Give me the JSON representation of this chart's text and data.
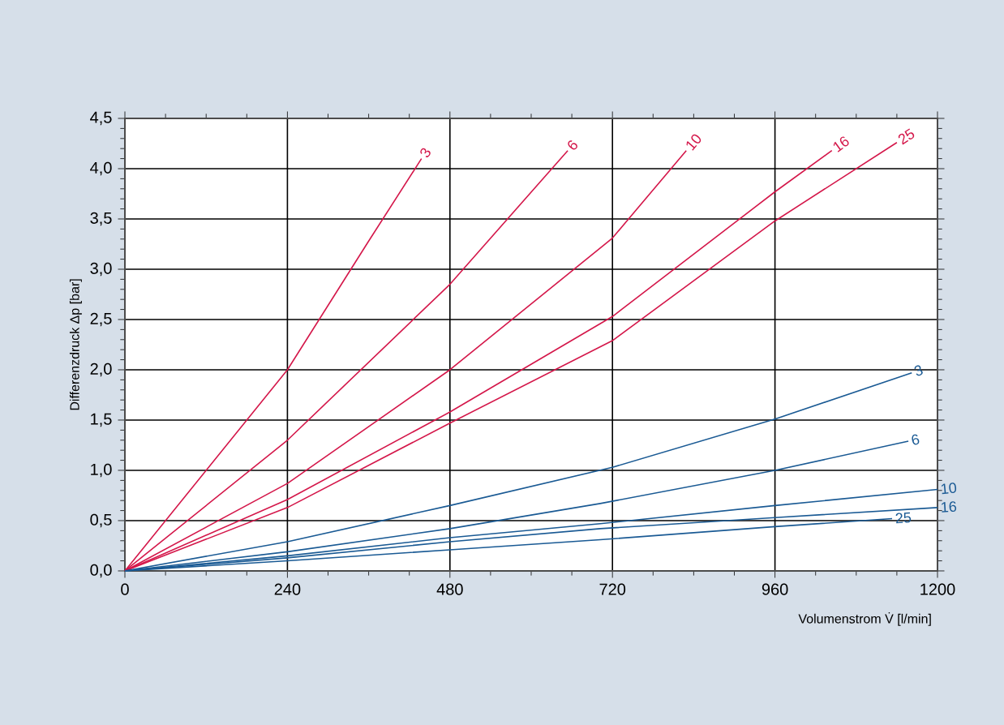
{
  "chart_data": {
    "type": "line",
    "xlabel": "Volumenstrom V̇ [l/min]",
    "ylabel": "Differenzdruck Δp [bar]",
    "xlim": [
      0,
      1200
    ],
    "ylim": [
      0,
      4.5
    ],
    "xticks": [
      0,
      240,
      480,
      720,
      960,
      1200
    ],
    "yticks": [
      {
        "value": 0,
        "label": "0,0"
      },
      {
        "value": 0.5,
        "label": "0,5"
      },
      {
        "value": 1,
        "label": "1,0"
      },
      {
        "value": 1.5,
        "label": "1,5"
      },
      {
        "value": 2,
        "label": "2,0"
      },
      {
        "value": 2.5,
        "label": "2,5"
      },
      {
        "value": 3,
        "label": "3,0"
      },
      {
        "value": 3.5,
        "label": "3,5"
      },
      {
        "value": 4,
        "label": "4,0"
      },
      {
        "value": 4.5,
        "label": "4,5"
      }
    ],
    "grid": true,
    "series": [
      {
        "name": "3",
        "color": "#d4174a",
        "x": [
          0,
          120,
          240,
          360,
          438
        ],
        "values": [
          0,
          1.0,
          2.0,
          3.28,
          4.1
        ]
      },
      {
        "name": "6",
        "color": "#d4174a",
        "x": [
          0,
          240,
          480,
          654
        ],
        "values": [
          0,
          1.3,
          2.85,
          4.18
        ]
      },
      {
        "name": "10",
        "color": "#d4174a",
        "x": [
          0,
          240,
          480,
          720,
          829
        ],
        "values": [
          0,
          0.87,
          2.0,
          3.31,
          4.18
        ]
      },
      {
        "name": "16",
        "color": "#d4174a",
        "x": [
          0,
          240,
          480,
          720,
          960,
          1044
        ],
        "values": [
          0,
          0.71,
          1.58,
          2.53,
          3.77,
          4.18
        ]
      },
      {
        "name": "25",
        "color": "#d4174a",
        "x": [
          0,
          240,
          480,
          720,
          960,
          1140
        ],
        "values": [
          0,
          0.63,
          1.47,
          2.29,
          3.48,
          4.26
        ]
      },
      {
        "name": "3",
        "color": "#1a5a94",
        "x": [
          0,
          240,
          480,
          720,
          960,
          1162
        ],
        "values": [
          0,
          0.29,
          0.65,
          1.03,
          1.51,
          1.97
        ]
      },
      {
        "name": "6",
        "color": "#1a5a94",
        "x": [
          0,
          240,
          480,
          702,
          960,
          1157
        ],
        "values": [
          0,
          0.19,
          0.42,
          0.67,
          1.0,
          1.29
        ]
      },
      {
        "name": "10",
        "color": "#1a5a94",
        "x": [
          0,
          240,
          480,
          702,
          960,
          1200
        ],
        "values": [
          0,
          0.15,
          0.33,
          0.47,
          0.65,
          0.81
        ]
      },
      {
        "name": "16",
        "color": "#1a5a94",
        "x": [
          0,
          240,
          480,
          702,
          960,
          1200
        ],
        "values": [
          0,
          0.13,
          0.29,
          0.42,
          0.53,
          0.63
        ]
      },
      {
        "name": "25",
        "color": "#1a5a94",
        "x": [
          0,
          240,
          480,
          702,
          960,
          1133
        ],
        "values": [
          0,
          0.1,
          0.21,
          0.31,
          0.44,
          0.52
        ]
      }
    ]
  }
}
